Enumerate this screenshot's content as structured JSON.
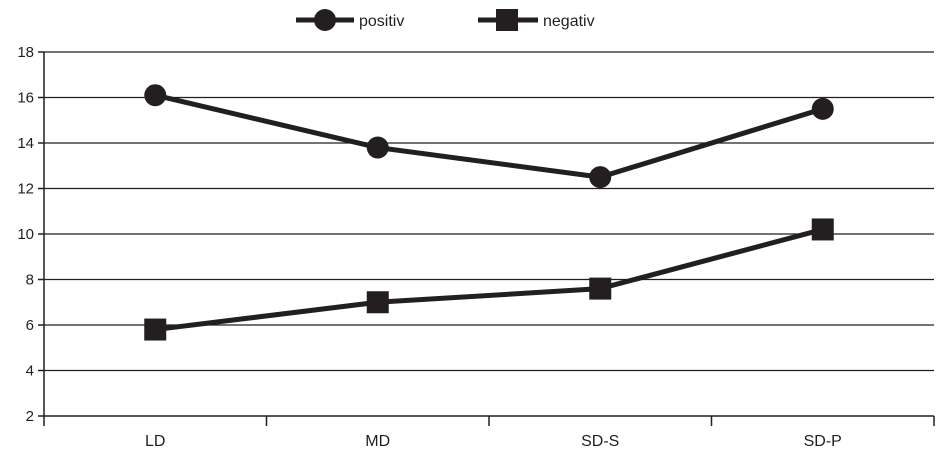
{
  "chart_data": {
    "type": "line",
    "categories": [
      "LD",
      "MD",
      "SD-S",
      "SD-P"
    ],
    "ylim": [
      2,
      18
    ],
    "yticks": [
      "2",
      "4",
      "6",
      "8",
      "10",
      "12",
      "14",
      "16",
      "18"
    ],
    "grid": true,
    "legend_position": "top-center",
    "series": [
      {
        "name": "positiv",
        "marker": "circle",
        "color": "#231f20",
        "values": [
          16.1,
          13.8,
          12.5,
          15.5
        ]
      },
      {
        "name": "negativ",
        "marker": "square",
        "color": "#231f20",
        "values": [
          5.8,
          7.0,
          7.6,
          10.2
        ]
      }
    ]
  }
}
